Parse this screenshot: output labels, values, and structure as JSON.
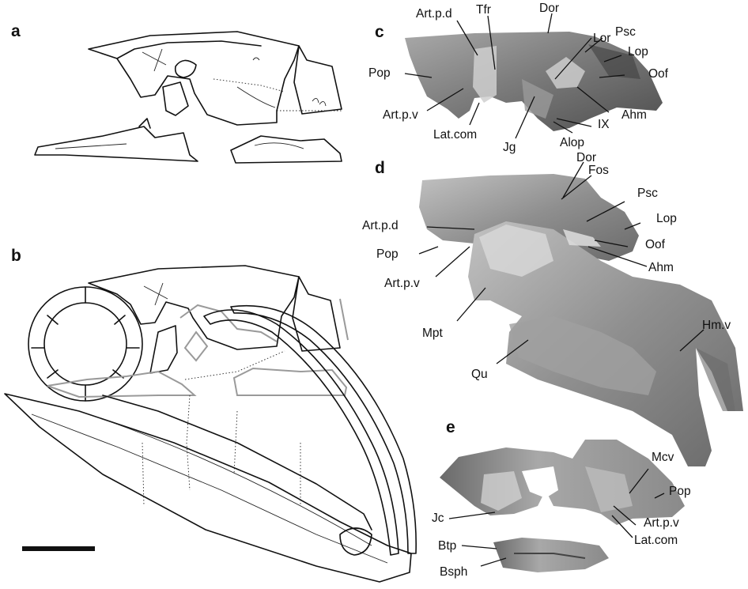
{
  "panels": {
    "a": {
      "letter": "a"
    },
    "b": {
      "letter": "b"
    },
    "c": {
      "letter": "c",
      "labels": {
        "art_p_d": "Art.p.d",
        "tfr": "Tfr",
        "dor": "Dor",
        "lor": "Lor",
        "psc": "Psc",
        "lop": "Lop",
        "oof": "Oof",
        "pop": "Pop",
        "ahm": "Ahm",
        "art_p_v": "Art.p.v",
        "ix": "IX",
        "lat_com": "Lat.com",
        "jg": "Jg",
        "alop": "Alop"
      }
    },
    "d": {
      "letter": "d",
      "labels": {
        "dor": "Dor",
        "fos": "Fos",
        "psc": "Psc",
        "art_p_d": "Art.p.d",
        "lop": "Lop",
        "oof": "Oof",
        "pop": "Pop",
        "ahm": "Ahm",
        "art_p_v": "Art.p.v",
        "mpt": "Mpt",
        "hm_v": "Hm.v",
        "qu": "Qu"
      }
    },
    "e": {
      "letter": "e",
      "labels": {
        "mcv": "Mcv",
        "pop": "Pop",
        "jc": "Jc",
        "art_p_v": "Art.p.v",
        "btp": "Btp",
        "lat_com": "Lat.com",
        "bsph": "Bsph"
      }
    }
  },
  "colors": {
    "ink": "#111111",
    "fossil_dark": "#5c5c5c",
    "fossil_mid": "#8e8e8e",
    "fossil_light": "#c4c4c4",
    "reconstruction_grey": "#9a9a9a"
  }
}
